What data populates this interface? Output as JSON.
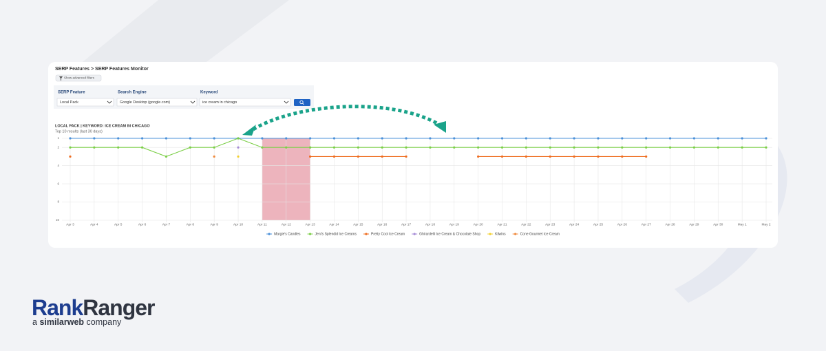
{
  "breadcrumb": "SERP Features > SERP Features Monitor",
  "advanced_filters_button": "Show advanced filters",
  "filters": [
    {
      "label": "SERP Feature",
      "value": "Local Pack"
    },
    {
      "label": "Search Engine",
      "value": "Google Desktop (google.com)"
    },
    {
      "label": "Keyword",
      "value": "ice cream in chicago"
    }
  ],
  "chart_data": {
    "type": "line",
    "title": "LOCAL PACK | KEYWORD: ICE CREAM IN CHICAGO",
    "subtitle": "Top 10 results (last 30 days)",
    "categories": [
      "Apr 3",
      "Apr 4",
      "Apr 5",
      "Apr 6",
      "Apr 7",
      "Apr 8",
      "Apr 9",
      "Apr 10",
      "Apr 11",
      "Apr 12",
      "Apr 13",
      "Apr 14",
      "Apr 15",
      "Apr 16",
      "Apr 17",
      "Apr 18",
      "Apr 19",
      "Apr 20",
      "Apr 21",
      "Apr 22",
      "Apr 23",
      "Apr 24",
      "Apr 25",
      "Apr 26",
      "Apr 27",
      "Apr 28",
      "Apr 29",
      "Apr 30",
      "May 1",
      "May 2"
    ],
    "ylim": [
      10,
      1
    ],
    "yticks": [
      1,
      2,
      4,
      6,
      8,
      10
    ],
    "grid": true,
    "legend": "bottom",
    "series": [
      {
        "name": "Margie's Candles",
        "color": "#4a90d9",
        "values": [
          1,
          1,
          1,
          1,
          1,
          1,
          1,
          1,
          1,
          1,
          1,
          1,
          1,
          1,
          1,
          1,
          1,
          1,
          1,
          1,
          1,
          1,
          1,
          1,
          1,
          1,
          1,
          1,
          1,
          1
        ]
      },
      {
        "name": "Jeni's Splendid Ice Creams",
        "color": "#7ccf48",
        "values": [
          2,
          2,
          2,
          2,
          3,
          2,
          2,
          1,
          2,
          2,
          2,
          2,
          2,
          2,
          2,
          2,
          2,
          2,
          2,
          2,
          2,
          2,
          2,
          2,
          2,
          2,
          2,
          2,
          2,
          2
        ]
      },
      {
        "name": "Pretty Cool Ice Cream",
        "color": "#ef6c1f",
        "values": [
          3,
          null,
          null,
          null,
          null,
          null,
          null,
          null,
          null,
          null,
          3,
          3,
          3,
          3,
          3,
          null,
          null,
          3,
          3,
          3,
          3,
          3,
          3,
          3,
          3,
          null,
          null,
          null,
          null,
          null
        ]
      },
      {
        "name": "Ghirardelli Ice Cream & Chocolate Shop",
        "color": "#a68bd6",
        "values": [
          null,
          null,
          null,
          null,
          null,
          null,
          null,
          2,
          null,
          null,
          null,
          null,
          null,
          null,
          null,
          null,
          null,
          null,
          null,
          null,
          null,
          null,
          null,
          null,
          null,
          null,
          null,
          null,
          null,
          null
        ]
      },
      {
        "name": "Kilwins",
        "color": "#f3d02f",
        "values": [
          null,
          null,
          null,
          null,
          null,
          null,
          null,
          3,
          null,
          null,
          null,
          null,
          null,
          null,
          null,
          null,
          null,
          null,
          null,
          null,
          null,
          null,
          null,
          null,
          null,
          null,
          null,
          null,
          null,
          null
        ]
      },
      {
        "name": "Cone Gourmet Ice Cream",
        "color": "#f08a3c",
        "values": [
          null,
          null,
          null,
          null,
          null,
          null,
          3,
          null,
          null,
          null,
          null,
          null,
          null,
          null,
          null,
          null,
          null,
          null,
          null,
          null,
          null,
          null,
          null,
          null,
          null,
          null,
          null,
          null,
          null,
          null
        ]
      }
    ]
  },
  "logo": {
    "brand": [
      "Rank",
      "Ranger"
    ],
    "tagline": [
      "a",
      "similarweb",
      "company"
    ]
  }
}
